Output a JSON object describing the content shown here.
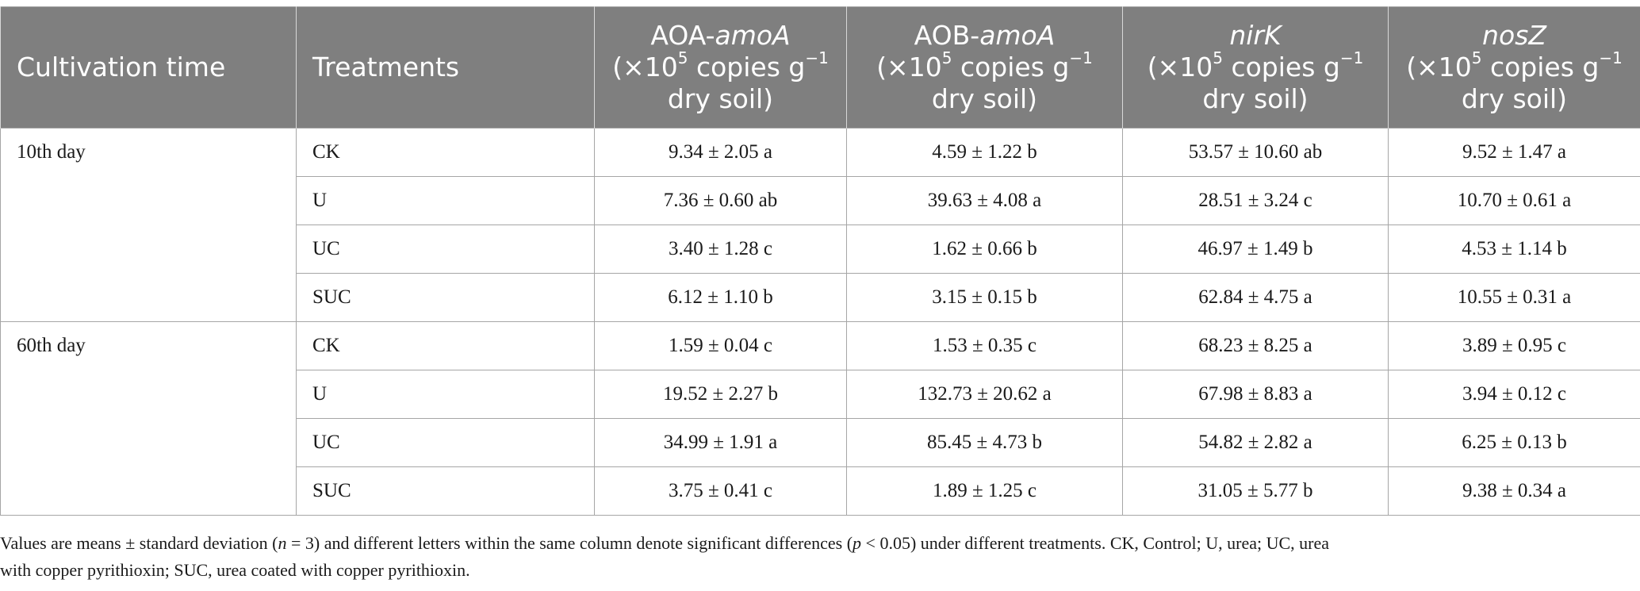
{
  "table": {
    "headers": {
      "cultivation_time": "Cultivation time",
      "treatments": "Treatments",
      "aoa": {
        "prefix": "AOA-",
        "gene": "amoA"
      },
      "aob": {
        "prefix": "AOB-",
        "gene": "amoA"
      },
      "nirk": {
        "gene": "nirK"
      },
      "nosz": {
        "gene": "nosZ"
      },
      "unit_open": "(×10",
      "unit_exp": "5",
      "unit_mid": " copies g",
      "unit_exp2": "−1",
      "unit_close": "dry soil)"
    },
    "groups": [
      {
        "time": "10th day",
        "rows": [
          {
            "treatment": "CK",
            "aoa": "9.34 ± 2.05 a",
            "aob": "4.59 ± 1.22 b",
            "nirk": "53.57 ± 10.60 ab",
            "nosz": "9.52 ± 1.47 a"
          },
          {
            "treatment": "U",
            "aoa": "7.36 ± 0.60 ab",
            "aob": "39.63 ± 4.08 a",
            "nirk": "28.51 ± 3.24 c",
            "nosz": "10.70 ± 0.61 a"
          },
          {
            "treatment": "UC",
            "aoa": "3.40 ± 1.28 c",
            "aob": "1.62 ± 0.66 b",
            "nirk": "46.97 ± 1.49 b",
            "nosz": "4.53 ± 1.14 b"
          },
          {
            "treatment": "SUC",
            "aoa": "6.12 ± 1.10 b",
            "aob": "3.15 ± 0.15 b",
            "nirk": "62.84 ± 4.75 a",
            "nosz": "10.55 ± 0.31 a"
          }
        ]
      },
      {
        "time": "60th day",
        "rows": [
          {
            "treatment": "CK",
            "aoa": "1.59 ± 0.04 c",
            "aob": "1.53 ± 0.35 c",
            "nirk": "68.23 ± 8.25 a",
            "nosz": "3.89 ± 0.95 c"
          },
          {
            "treatment": "U",
            "aoa": "19.52 ± 2.27 b",
            "aob": "132.73 ± 20.62 a",
            "nirk": "67.98 ± 8.83 a",
            "nosz": "3.94 ± 0.12 c"
          },
          {
            "treatment": "UC",
            "aoa": "34.99 ± 1.91 a",
            "aob": "85.45 ± 4.73 b",
            "nirk": "54.82 ± 2.82 a",
            "nosz": "6.25 ± 0.13 b"
          },
          {
            "treatment": "SUC",
            "aoa": "3.75 ± 0.41 c",
            "aob": "1.89 ± 1.25 c",
            "nirk": "31.05 ± 5.77 b",
            "nosz": "9.38 ± 0.34 a"
          }
        ]
      }
    ]
  },
  "footnote": {
    "part1": "Values are means ± standard deviation (",
    "n_var": "n",
    "part2": " = 3) and different letters within the same column denote significant differences (",
    "p_var": "p",
    "part3": " < 0.05) under different treatments. CK, Control; U, urea; UC, urea",
    "part4": "with copper pyrithioxin; SUC, urea coated with copper pyrithioxin."
  },
  "colors": {
    "header_bg": "#7f7f7f",
    "header_text": "#ffffff",
    "grid": "#a6a6a6"
  }
}
